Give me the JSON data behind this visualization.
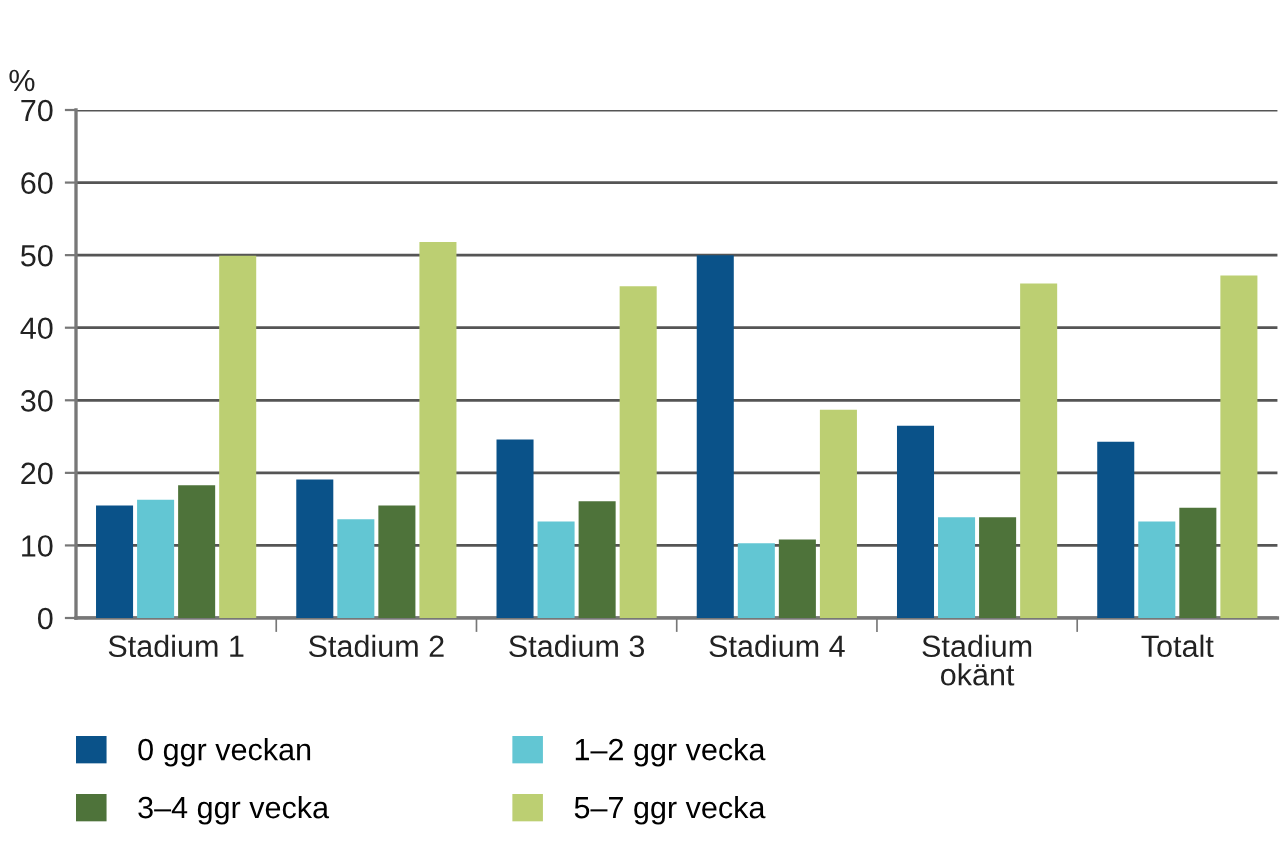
{
  "chart_data": {
    "type": "bar",
    "ylabel": "%",
    "categories": [
      "Stadium 1",
      "Stadium 2",
      "Stadium 3",
      "Stadium 4",
      "Stadium okänt",
      "Totalt"
    ],
    "series": [
      {
        "name": "0 ggr veckan",
        "color": "#0a5289",
        "values": [
          15.5,
          19.1,
          24.6,
          50.0,
          26.5,
          24.3
        ]
      },
      {
        "name": "1–2 ggr vecka",
        "color": "#62c6d3",
        "values": [
          16.3,
          13.6,
          13.3,
          10.3,
          13.9,
          13.3
        ]
      },
      {
        "name": "3–4 ggr vecka",
        "color": "#4e733a",
        "values": [
          18.3,
          15.5,
          16.1,
          10.8,
          13.9,
          15.2
        ]
      },
      {
        "name": "5–7 ggr vecka",
        "color": "#bccf72",
        "values": [
          49.9,
          51.8,
          45.7,
          28.7,
          46.1,
          47.2
        ]
      }
    ],
    "ylim": [
      0,
      70
    ],
    "yticks": [
      0,
      10,
      20,
      30,
      40,
      50,
      60,
      70
    ],
    "grid": "y",
    "legend": "bottom"
  }
}
